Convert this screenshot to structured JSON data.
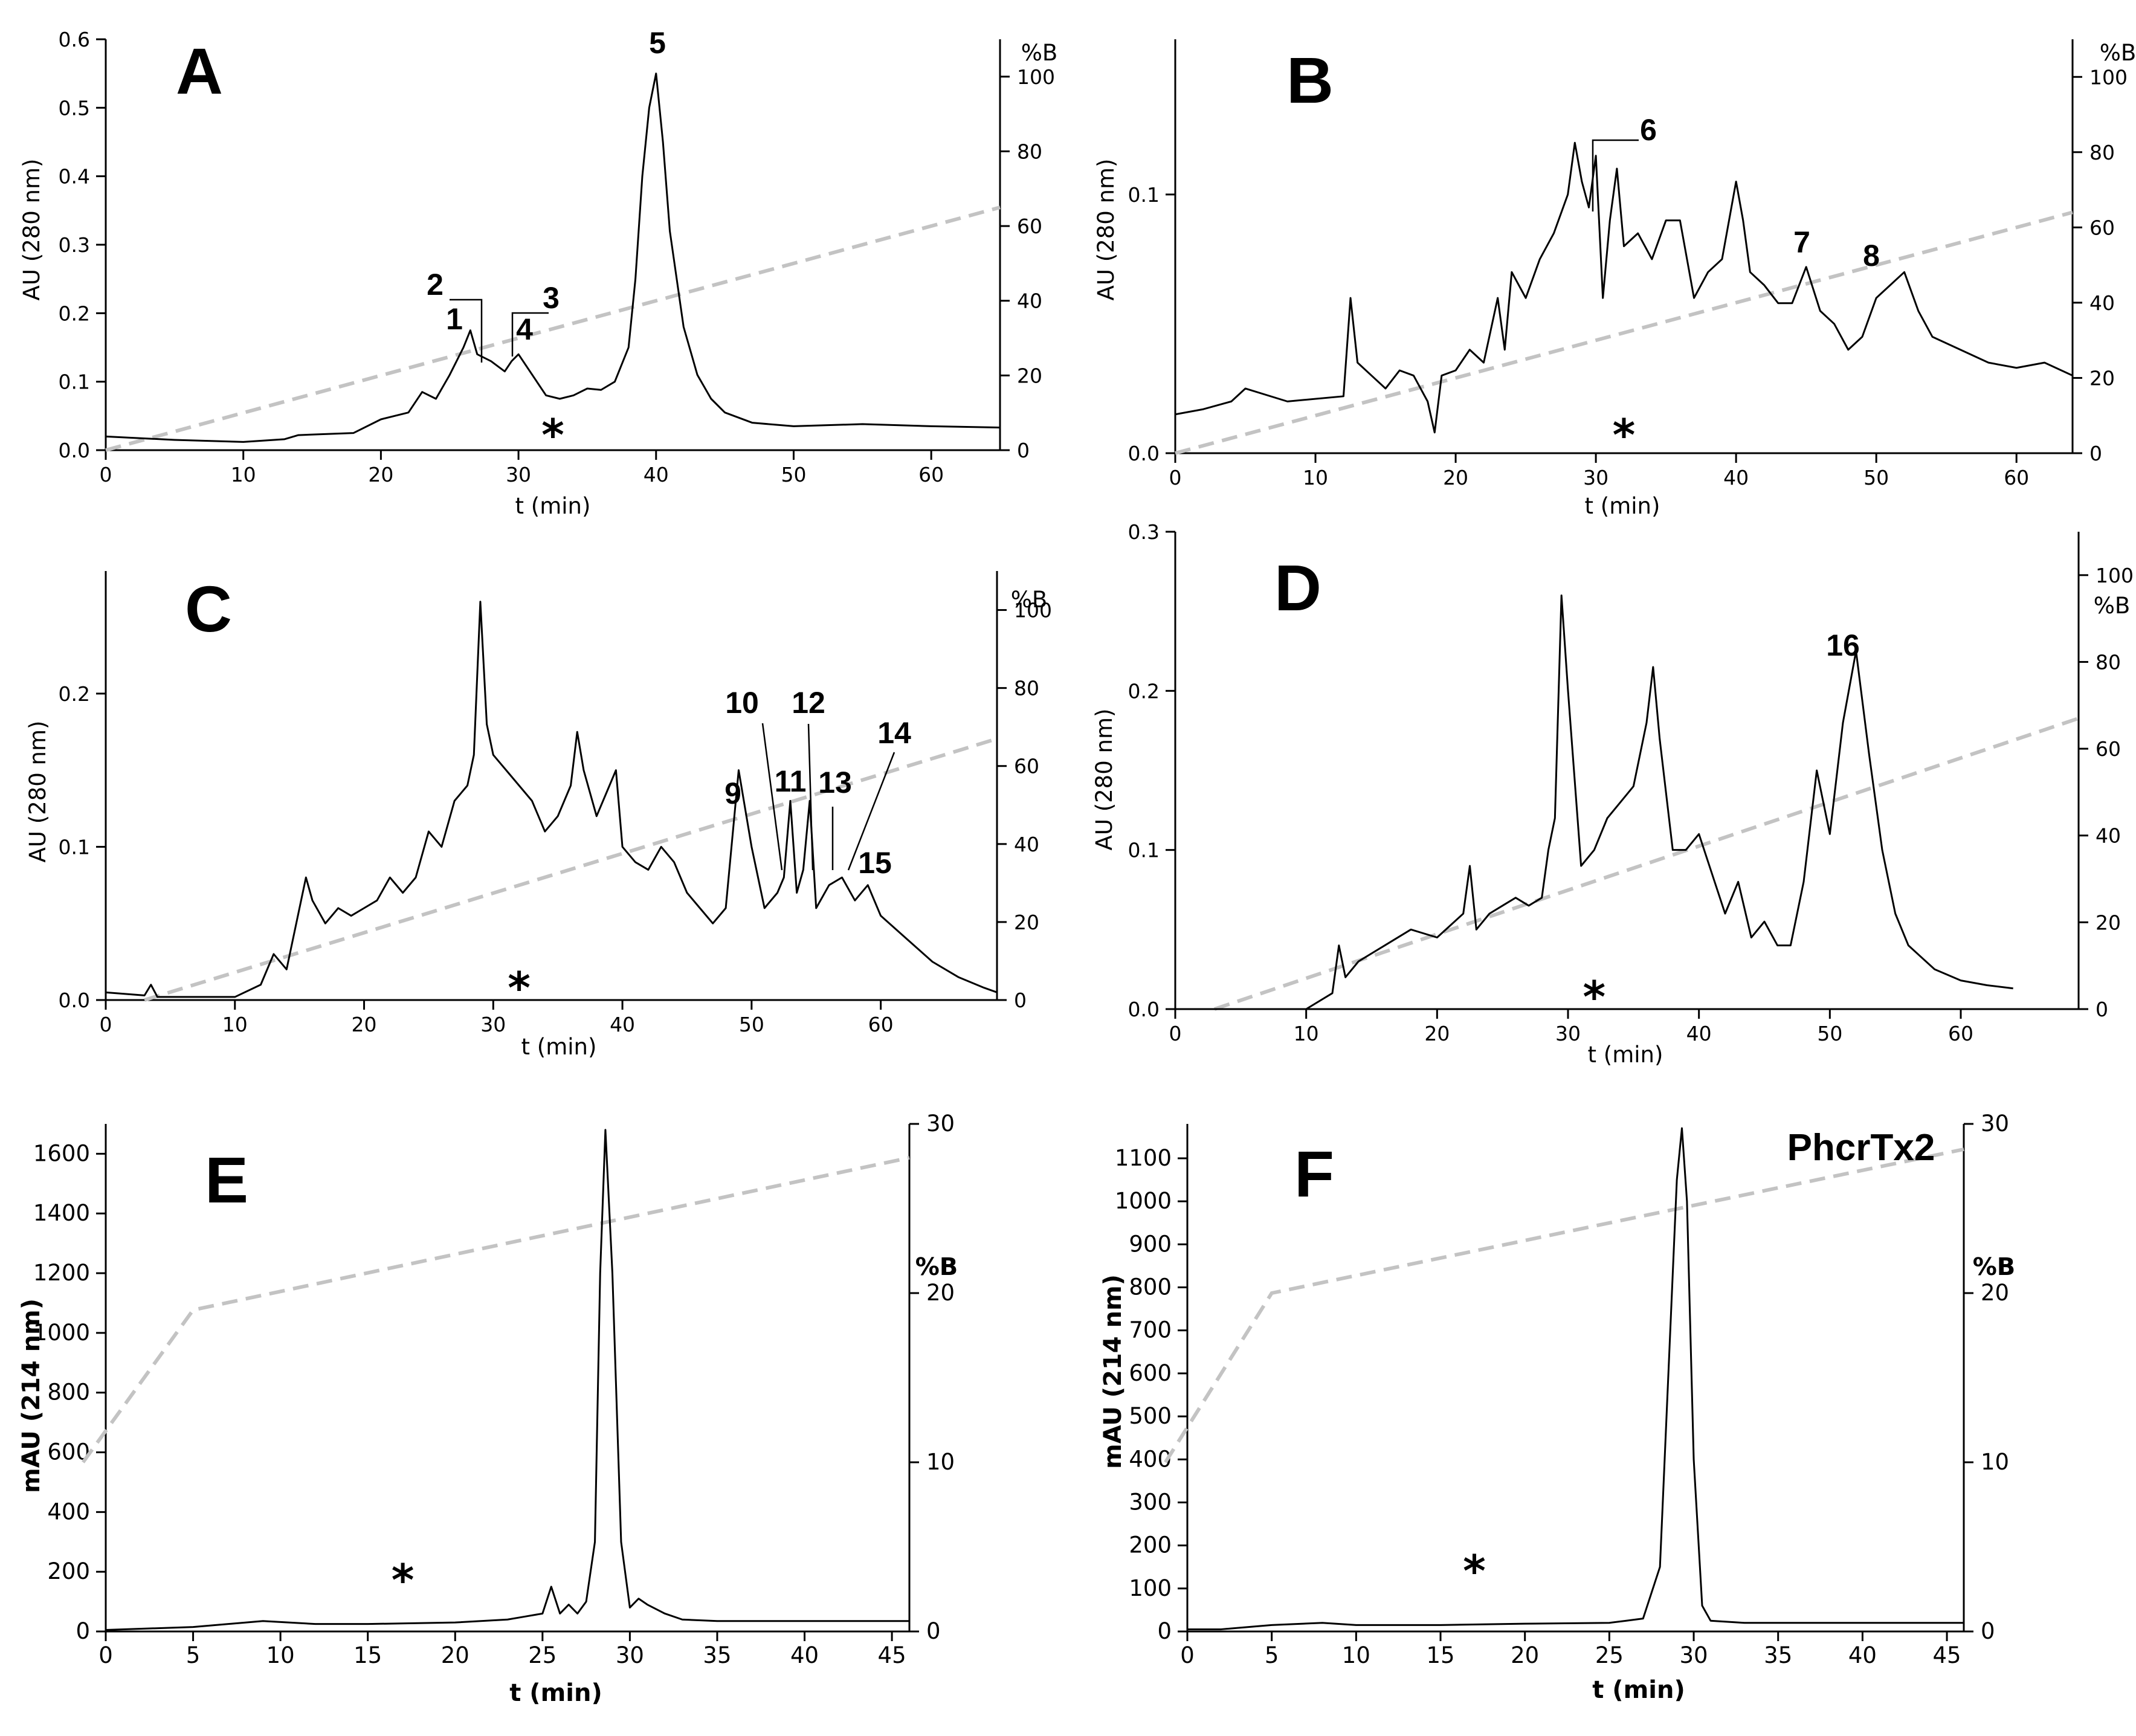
{
  "chart_data": [
    {
      "panel": "A",
      "type": "line",
      "xlabel": "t (min)",
      "ylabel": "AU (280 nm)",
      "y2label": "%B",
      "xlim": [
        0,
        65
      ],
      "ylim": [
        0,
        0.6
      ],
      "y2lim": [
        0,
        110
      ],
      "xticks": [
        0,
        10,
        20,
        30,
        40,
        50,
        60
      ],
      "yticks": [
        0.0,
        0.1,
        0.2,
        0.3,
        0.4,
        0.5,
        0.6
      ],
      "ytick_labels": [
        "0.0",
        "0.1",
        "0.2",
        "0.3",
        "0.4",
        "0.5",
        "0.6"
      ],
      "y2ticks": [
        0,
        20,
        40,
        60,
        80,
        100
      ],
      "gradient": {
        "x": [
          0,
          65
        ],
        "y": [
          0,
          65
        ]
      },
      "trace": {
        "x": [
          0,
          5,
          10,
          13,
          14,
          18,
          20,
          22,
          23,
          24,
          25,
          26,
          26.5,
          27,
          28,
          29,
          29.5,
          30,
          31,
          32,
          33,
          34,
          35,
          36,
          37,
          38,
          38.5,
          39,
          39.5,
          40,
          40.5,
          41,
          42,
          43,
          44,
          45,
          47,
          50,
          55,
          60,
          65
        ],
        "y": [
          0.02,
          0.015,
          0.012,
          0.016,
          0.022,
          0.025,
          0.045,
          0.055,
          0.085,
          0.075,
          0.11,
          0.15,
          0.175,
          0.14,
          0.13,
          0.115,
          0.13,
          0.14,
          0.11,
          0.08,
          0.075,
          0.08,
          0.09,
          0.088,
          0.1,
          0.15,
          0.25,
          0.4,
          0.5,
          0.55,
          0.45,
          0.32,
          0.18,
          0.11,
          0.075,
          0.055,
          0.04,
          0.035,
          0.038,
          0.035,
          0.033
        ]
      },
      "peaks": [
        {
          "label": "1",
          "x": 26.5,
          "y": 0.175
        },
        {
          "label": "2",
          "x": 27.3,
          "y": 0.14
        },
        {
          "label": "3",
          "x": 30.0,
          "y": 0.14
        },
        {
          "label": "4",
          "x": 29.5,
          "y": 0.13
        },
        {
          "label": "5",
          "x": 40.0,
          "y": 0.55
        }
      ],
      "marker": {
        "label": "*",
        "x": 32.5
      }
    },
    {
      "panel": "B",
      "type": "line",
      "xlabel": "t (min)",
      "ylabel": "AU (280 nm)",
      "y2label": "%B",
      "xlim": [
        0,
        64
      ],
      "ylim": [
        0,
        0.16
      ],
      "y2lim": [
        0,
        110
      ],
      "xticks": [
        0,
        10,
        20,
        30,
        40,
        50,
        60
      ],
      "yticks": [
        0.0,
        0.1
      ],
      "ytick_labels": [
        "0.0",
        "0.1"
      ],
      "y2ticks": [
        0,
        20,
        40,
        60,
        80,
        100
      ],
      "gradient": {
        "x": [
          0,
          64
        ],
        "y": [
          0,
          64
        ]
      },
      "trace": {
        "x": [
          0,
          2,
          4,
          5,
          8,
          12,
          12.5,
          13,
          14,
          15,
          16,
          17,
          18,
          18.5,
          19,
          20,
          21,
          22,
          23,
          23.5,
          24,
          25,
          26,
          27,
          28,
          28.5,
          29,
          29.5,
          30,
          30.5,
          31,
          31.5,
          32,
          33,
          34,
          35,
          36,
          37,
          38,
          39,
          40,
          40.5,
          41,
          42,
          43,
          44,
          45,
          46,
          47,
          48,
          49,
          50,
          51,
          52,
          53,
          54,
          56,
          58,
          60,
          62,
          64
        ],
        "y": [
          0.015,
          0.017,
          0.02,
          0.025,
          0.02,
          0.022,
          0.06,
          0.035,
          0.03,
          0.025,
          0.032,
          0.03,
          0.02,
          0.008,
          0.03,
          0.032,
          0.04,
          0.035,
          0.06,
          0.04,
          0.07,
          0.06,
          0.075,
          0.085,
          0.1,
          0.12,
          0.105,
          0.095,
          0.115,
          0.06,
          0.09,
          0.11,
          0.08,
          0.085,
          0.075,
          0.09,
          0.09,
          0.06,
          0.07,
          0.075,
          0.105,
          0.09,
          0.07,
          0.065,
          0.058,
          0.058,
          0.072,
          0.055,
          0.05,
          0.04,
          0.045,
          0.06,
          0.065,
          0.07,
          0.055,
          0.045,
          0.04,
          0.035,
          0.033,
          0.035,
          0.03
        ]
      },
      "peaks": [
        {
          "label": "6",
          "x": 30.0,
          "y": 0.115
        },
        {
          "label": "7",
          "x": 45.0,
          "y": 0.072
        },
        {
          "label": "8",
          "x": 50.5,
          "y": 0.065
        }
      ],
      "marker": {
        "label": "*",
        "x": 32
      }
    },
    {
      "panel": "C",
      "type": "line",
      "xlabel": "t (min)",
      "ylabel": "AU (280 nm)",
      "y2label": "%B",
      "xlim": [
        0,
        69
      ],
      "ylim": [
        0,
        0.28
      ],
      "y2lim": [
        0,
        110
      ],
      "xticks": [
        0,
        10,
        20,
        30,
        40,
        50,
        60
      ],
      "yticks": [
        0.0,
        0.1,
        0.2
      ],
      "ytick_labels": [
        "0.0",
        "0.1",
        "0.2"
      ],
      "y2ticks": [
        0,
        20,
        40,
        60,
        80,
        100
      ],
      "gradient": {
        "x": [
          3,
          69
        ],
        "y": [
          0,
          67
        ]
      },
      "trace": {
        "x": [
          0,
          3,
          3.5,
          4,
          10,
          12,
          13,
          14,
          15,
          15.5,
          16,
          17,
          18,
          19,
          20,
          21,
          22,
          23,
          24,
          25,
          26,
          27,
          28,
          28.5,
          29,
          29.5,
          30,
          31,
          32,
          33,
          34,
          35,
          36,
          36.5,
          37,
          38,
          39,
          39.5,
          40,
          41,
          42,
          43,
          44,
          45,
          46,
          47,
          48,
          49,
          50,
          51,
          52,
          52.5,
          53,
          53.5,
          54,
          54.5,
          55,
          56,
          57,
          58,
          59,
          60,
          62,
          64,
          66,
          68,
          69
        ],
        "y": [
          0.005,
          0.003,
          0.01,
          0.002,
          0.002,
          0.01,
          0.03,
          0.02,
          0.06,
          0.08,
          0.065,
          0.05,
          0.06,
          0.055,
          0.06,
          0.065,
          0.08,
          0.07,
          0.08,
          0.11,
          0.1,
          0.13,
          0.14,
          0.16,
          0.26,
          0.18,
          0.16,
          0.15,
          0.14,
          0.13,
          0.11,
          0.12,
          0.14,
          0.175,
          0.15,
          0.12,
          0.14,
          0.15,
          0.1,
          0.09,
          0.085,
          0.1,
          0.09,
          0.07,
          0.06,
          0.05,
          0.06,
          0.15,
          0.1,
          0.06,
          0.07,
          0.08,
          0.13,
          0.07,
          0.085,
          0.13,
          0.06,
          0.075,
          0.08,
          0.065,
          0.075,
          0.055,
          0.04,
          0.025,
          0.015,
          0.008,
          0.005
        ]
      },
      "peaks": [
        {
          "label": "9",
          "x": 49.0,
          "y": 0.15
        },
        {
          "label": "10",
          "x": 52.3,
          "y": 0.085
        },
        {
          "label": "11",
          "x": 53.5,
          "y": 0.13
        },
        {
          "label": "12",
          "x": 54.8,
          "y": 0.13
        },
        {
          "label": "13",
          "x": 56.2,
          "y": 0.085
        },
        {
          "label": "14",
          "x": 57.2,
          "y": 0.08
        },
        {
          "label": "15",
          "x": 58.2,
          "y": 0.075
        }
      ],
      "marker": {
        "label": "*",
        "x": 32
      }
    },
    {
      "panel": "D",
      "type": "line",
      "xlabel": "t (min)",
      "ylabel": "AU (280 nm)",
      "y2label": "%B",
      "xlim": [
        0,
        69
      ],
      "ylim": [
        0,
        0.3
      ],
      "y2lim": [
        0,
        110
      ],
      "xticks": [
        0,
        10,
        20,
        30,
        40,
        50,
        60
      ],
      "yticks": [
        0.0,
        0.1,
        0.2,
        0.3
      ],
      "ytick_labels": [
        "0.0",
        "0.1",
        "0.2",
        "0.3"
      ],
      "y2ticks": [
        0,
        20,
        40,
        60,
        80,
        100
      ],
      "gradient": {
        "x": [
          3,
          69
        ],
        "y": [
          0,
          67
        ]
      },
      "trace": {
        "x": [
          0,
          10,
          12,
          12.5,
          13,
          14,
          16,
          18,
          20,
          22,
          22.5,
          23,
          24,
          25,
          26,
          27,
          28,
          28.5,
          29,
          29.5,
          30,
          31,
          32,
          33,
          34,
          35,
          36,
          36.5,
          37,
          38,
          39,
          40,
          41,
          42,
          43,
          44,
          45,
          46,
          47,
          48,
          49,
          50,
          51,
          52,
          53,
          54,
          55,
          56,
          58,
          60,
          62,
          64
        ],
        "y": [
          0.0,
          0.0,
          0.01,
          0.04,
          0.02,
          0.03,
          0.04,
          0.05,
          0.045,
          0.06,
          0.09,
          0.05,
          0.06,
          0.065,
          0.07,
          0.065,
          0.07,
          0.1,
          0.12,
          0.26,
          0.2,
          0.09,
          0.1,
          0.12,
          0.13,
          0.14,
          0.18,
          0.215,
          0.17,
          0.1,
          0.1,
          0.11,
          0.085,
          0.06,
          0.08,
          0.045,
          0.055,
          0.04,
          0.04,
          0.08,
          0.15,
          0.11,
          0.18,
          0.225,
          0.16,
          0.1,
          0.06,
          0.04,
          0.025,
          0.018,
          0.015,
          0.013
        ]
      },
      "peaks": [
        {
          "label": "16",
          "x": 52.0,
          "y": 0.225
        }
      ],
      "marker": {
        "label": "*",
        "x": 32
      }
    },
    {
      "panel": "E",
      "type": "line",
      "xlabel": "t (min)",
      "ylabel": "mAU (214 nm)",
      "y2label": "%B",
      "xlim": [
        0,
        46
      ],
      "ylim": [
        0,
        1700
      ],
      "y2lim": [
        0,
        30
      ],
      "xticks": [
        0,
        5,
        10,
        15,
        20,
        25,
        30,
        35,
        40,
        45
      ],
      "yticks": [
        0,
        200,
        400,
        600,
        800,
        1000,
        1200,
        1400,
        1600
      ],
      "ytick_labels": [
        "0",
        "200",
        "400",
        "600",
        "800",
        "1000",
        "1200",
        "1400",
        "1600"
      ],
      "y2ticks": [
        0,
        10,
        20,
        30
      ],
      "gradient": {
        "x": [
          -1.3,
          5,
          46
        ],
        "y": [
          10,
          19,
          28
        ]
      },
      "trace": {
        "x": [
          0,
          5,
          9,
          12,
          15,
          20,
          23,
          24,
          25,
          25.5,
          26,
          26.5,
          27,
          27.5,
          28,
          28.3,
          28.6,
          29,
          29.5,
          30,
          30.5,
          31,
          32,
          33,
          35,
          40,
          46
        ],
        "y": [
          5,
          15,
          35,
          25,
          25,
          30,
          40,
          50,
          60,
          150,
          60,
          90,
          60,
          100,
          300,
          1200,
          1680,
          1200,
          300,
          80,
          110,
          90,
          60,
          40,
          35,
          35,
          35
        ]
      },
      "marker": {
        "label": "*",
        "x": 17
      }
    },
    {
      "panel": "F",
      "type": "line",
      "xlabel": "t (min)",
      "ylabel": "mAU (214 nm)",
      "y2label": "%B",
      "xlim": [
        0,
        46
      ],
      "ylim": [
        0,
        1180
      ],
      "y2lim": [
        0,
        30
      ],
      "xticks": [
        0,
        5,
        10,
        15,
        20,
        25,
        30,
        35,
        40,
        45
      ],
      "yticks": [
        0,
        100,
        200,
        300,
        400,
        500,
        600,
        700,
        800,
        900,
        1000,
        1100
      ],
      "ytick_labels": [
        "0",
        "100",
        "200",
        "300",
        "400",
        "500",
        "600",
        "700",
        "800",
        "900",
        "1000",
        "1100"
      ],
      "y2ticks": [
        0,
        10,
        20,
        30
      ],
      "gradient": {
        "x": [
          -1.3,
          5,
          46
        ],
        "y": [
          10,
          20,
          28.5
        ]
      },
      "trace": {
        "x": [
          0,
          2,
          5,
          8,
          10,
          15,
          20,
          25,
          26,
          27,
          28,
          28.5,
          29,
          29.3,
          29.6,
          30,
          30.5,
          31,
          33,
          40,
          46
        ],
        "y": [
          5,
          5,
          15,
          20,
          15,
          15,
          18,
          20,
          25,
          30,
          150,
          600,
          1050,
          1170,
          1000,
          400,
          60,
          25,
          20,
          20,
          20
        ]
      },
      "title_label": "PhcrTx2",
      "marker": {
        "label": "*",
        "x": 17
      }
    }
  ]
}
